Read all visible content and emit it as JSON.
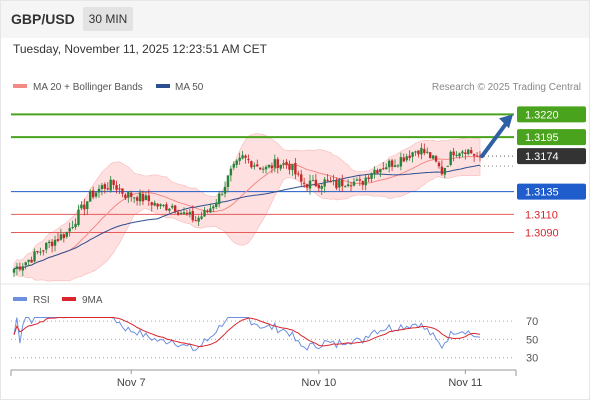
{
  "header": {
    "symbol": "GBP/USD",
    "timeframe": "30 MIN",
    "datetime": "Tuesday, November 11, 2025 12:23:51 AM CET",
    "watermark": "Research © 2025 Trading Central"
  },
  "colors": {
    "candle_up": "#26833a",
    "candle_down": "#c62828",
    "bb_fill": "#ffd6d6",
    "ma20": "#f28a86",
    "ma50": "#2c4f8f",
    "resistance": "#4aa31c",
    "pivot": "#1f5ccc",
    "support": "#e55b5b",
    "rsi": "#6c8fe0",
    "rsi_ma": "#d9252b",
    "last_price": "#333333"
  },
  "chart_data": [
    {
      "type": "candlestick",
      "name": "price",
      "legend": [
        {
          "label": "MA 20 + Bollinger Bands",
          "color": "#f28a86"
        },
        {
          "label": "MA 50",
          "color": "#2c4f8f"
        }
      ],
      "ylim": [
        1.304,
        1.3238
      ],
      "x_ticks": [
        {
          "label": "Nov 7",
          "index": 40
        },
        {
          "label": "Nov 10",
          "index": 104
        },
        {
          "label": "Nov 11",
          "index": 154
        }
      ],
      "n_bars": 160,
      "last_price": 1.3174,
      "levels": [
        {
          "value": 1.322,
          "label": "1.3220",
          "kind": "resistance"
        },
        {
          "value": 1.3195,
          "label": "1.3195",
          "kind": "resistance"
        },
        {
          "value": 1.3135,
          "label": "1.3135",
          "kind": "pivot"
        },
        {
          "value": 1.311,
          "label": "1.3110",
          "kind": "support"
        },
        {
          "value": 1.309,
          "label": "1.3090",
          "kind": "support"
        }
      ],
      "forecast": {
        "from": 1.3174,
        "to": 1.322
      },
      "anchors": [
        [
          0,
          1.305
        ],
        [
          6,
          1.3062
        ],
        [
          12,
          1.3078
        ],
        [
          18,
          1.309
        ],
        [
          22,
          1.311
        ],
        [
          26,
          1.313
        ],
        [
          30,
          1.314
        ],
        [
          34,
          1.3143
        ],
        [
          38,
          1.3132
        ],
        [
          42,
          1.313
        ],
        [
          46,
          1.3125
        ],
        [
          50,
          1.3118
        ],
        [
          54,
          1.312
        ],
        [
          58,
          1.311
        ],
        [
          62,
          1.3104
        ],
        [
          66,
          1.3113
        ],
        [
          70,
          1.313
        ],
        [
          74,
          1.3156
        ],
        [
          78,
          1.3172
        ],
        [
          82,
          1.3166
        ],
        [
          86,
          1.316
        ],
        [
          90,
          1.3167
        ],
        [
          94,
          1.3164
        ],
        [
          98,
          1.3145
        ],
        [
          102,
          1.3143
        ],
        [
          106,
          1.3146
        ],
        [
          110,
          1.3142
        ],
        [
          114,
          1.3148
        ],
        [
          118,
          1.3143
        ],
        [
          122,
          1.3158
        ],
        [
          126,
          1.3163
        ],
        [
          130,
          1.3168
        ],
        [
          134,
          1.3175
        ],
        [
          138,
          1.3182
        ],
        [
          142,
          1.3174
        ],
        [
          146,
          1.3157
        ],
        [
          150,
          1.318
        ],
        [
          154,
          1.3182
        ],
        [
          158,
          1.3174
        ],
        [
          159,
          1.3174
        ]
      ]
    },
    {
      "type": "line",
      "name": "RSI",
      "legend": [
        {
          "label": "RSI",
          "color": "#6c8fe0"
        },
        {
          "label": "9MA",
          "color": "#d9252b"
        }
      ],
      "ylim": [
        22,
        80
      ],
      "y_ticks": [
        70,
        50,
        30
      ],
      "gridlines": [
        70,
        50,
        30
      ]
    }
  ]
}
